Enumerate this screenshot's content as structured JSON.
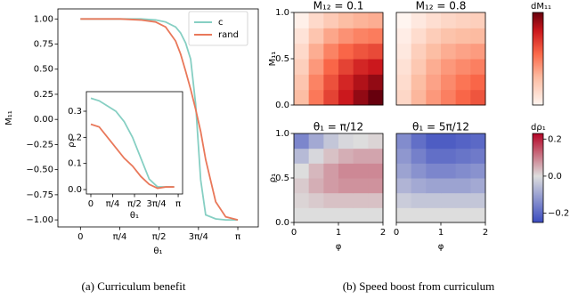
{
  "chart_data": [
    {
      "type": "line",
      "caption": "(a) Curriculum benefit",
      "xlabel": "θ₁",
      "ylabel": "M₁₁",
      "x": [
        0,
        0.4,
        0.8,
        1.2,
        1.5,
        1.7,
        1.9,
        2.0,
        2.1,
        2.2,
        2.3,
        2.4,
        2.5,
        2.7,
        2.9,
        3.1416
      ],
      "series": [
        {
          "name": "c",
          "color": "#86cfc3",
          "values": [
            1,
            1,
            1,
            1,
            0.99,
            0.97,
            0.92,
            0.86,
            0.76,
            0.6,
            0.15,
            -0.6,
            -0.95,
            -0.99,
            -1,
            -1
          ]
        },
        {
          "name": "rand",
          "color": "#e9785a",
          "values": [
            1,
            1,
            1,
            0.99,
            0.97,
            0.92,
            0.78,
            0.65,
            0.48,
            0.3,
            0.1,
            -0.12,
            -0.4,
            -0.82,
            -0.97,
            -1
          ]
        }
      ],
      "xlim": [
        -0.45,
        3.55
      ],
      "ylim": [
        -1.07,
        1.1
      ],
      "xticks": [
        0,
        {
          "value": 0.7854,
          "label": "π/4"
        },
        {
          "value": 1.5708,
          "label": "π/2"
        },
        {
          "value": 2.3562,
          "label": "3π/4"
        },
        {
          "value": 3.1416,
          "label": "π"
        }
      ],
      "yticks": [
        {
          "value": -1,
          "label": "−1.00"
        },
        {
          "value": -0.75,
          "label": "−0.75"
        },
        {
          "value": -0.5,
          "label": "−0.50"
        },
        {
          "value": -0.25,
          "label": "−0.25"
        },
        {
          "value": 0,
          "label": "0.00"
        },
        {
          "value": 0.25,
          "label": "0.25"
        },
        {
          "value": 0.5,
          "label": "0.50"
        },
        {
          "value": 0.75,
          "label": "0.75"
        },
        {
          "value": 1,
          "label": "1.00"
        }
      ],
      "legend": "upper right"
    },
    {
      "type": "line",
      "xlabel": "θ₁",
      "ylabel": "ρ₁",
      "x": [
        0,
        0.3,
        0.6,
        0.9,
        1.2,
        1.5,
        1.8,
        2.1,
        2.4,
        2.7,
        3.0
      ],
      "series": [
        {
          "name": "c",
          "color": "#86cfc3",
          "values": [
            0.35,
            0.34,
            0.32,
            0.3,
            0.26,
            0.2,
            0.12,
            0.04,
            0.01,
            0.01,
            0.01
          ]
        },
        {
          "name": "rand",
          "color": "#e9785a",
          "values": [
            0.25,
            0.24,
            0.2,
            0.16,
            0.12,
            0.09,
            0.05,
            0.02,
            0.005,
            0.01,
            0.01
          ]
        }
      ],
      "xlim": [
        -0.16,
        3.3
      ],
      "ylim": [
        -0.017,
        0.375
      ],
      "xticks": [
        0,
        {
          "value": 0.7854,
          "label": "π/4"
        },
        {
          "value": 1.5708,
          "label": "π/2"
        },
        {
          "value": 2.3562,
          "label": "3π/4"
        },
        {
          "value": 3.1416,
          "label": "π"
        }
      ],
      "yticks": [
        {
          "value": 0,
          "label": "0.0"
        },
        {
          "value": 0.1,
          "label": "0.1"
        },
        {
          "value": 0.2,
          "label": "0.2"
        },
        {
          "value": 0.3,
          "label": "0.3"
        }
      ]
    },
    {
      "type": "heatmap",
      "caption": "(b) Speed boost from curriculum",
      "title": "M₁₂ = 0.1",
      "ylabel": "M₁₁",
      "cmap": "reds",
      "xlim": [
        0,
        2
      ],
      "ylim": [
        0,
        1
      ],
      "yticks": [
        {
          "value": 0,
          "label": "0.0"
        },
        {
          "value": 0.5,
          "label": "0.5"
        },
        {
          "value": 1,
          "label": "1.0"
        }
      ],
      "z": [
        [
          0.25,
          0.45,
          0.6,
          0.72,
          0.85,
          0.95
        ],
        [
          0.22,
          0.42,
          0.56,
          0.68,
          0.78,
          0.85
        ],
        [
          0.18,
          0.36,
          0.5,
          0.6,
          0.68,
          0.72
        ],
        [
          0.14,
          0.3,
          0.42,
          0.5,
          0.55,
          0.58
        ],
        [
          0.1,
          0.22,
          0.32,
          0.38,
          0.42,
          0.44
        ],
        [
          0.05,
          0.14,
          0.2,
          0.25,
          0.28,
          0.3
        ]
      ]
    },
    {
      "type": "heatmap",
      "title": "M₁₂ = 0.8",
      "cmap": "reds",
      "xlim": [
        0,
        2
      ],
      "ylim": [
        0,
        1
      ],
      "z": [
        [
          0.15,
          0.27,
          0.36,
          0.43,
          0.5,
          0.55
        ],
        [
          0.13,
          0.25,
          0.33,
          0.4,
          0.46,
          0.5
        ],
        [
          0.11,
          0.21,
          0.3,
          0.36,
          0.4,
          0.43
        ],
        [
          0.08,
          0.18,
          0.25,
          0.3,
          0.33,
          0.35
        ],
        [
          0.06,
          0.13,
          0.19,
          0.23,
          0.25,
          0.26
        ],
        [
          0.03,
          0.08,
          0.12,
          0.15,
          0.17,
          0.18
        ]
      ]
    },
    {
      "type": "heatmap",
      "title": "θ₁ = π/12",
      "xlabel": "φ",
      "ylabel": "ρ₁",
      "cmap": "coolwarm",
      "xlim": [
        0,
        2
      ],
      "ylim": [
        0,
        1
      ],
      "xticks": [
        0,
        1,
        2
      ],
      "yticks": [
        {
          "value": 0,
          "label": "0.0"
        },
        {
          "value": 0.5,
          "label": "0.5"
        },
        {
          "value": 1,
          "label": "1.0"
        }
      ],
      "z": [
        [
          0,
          0,
          0,
          0,
          0,
          0
        ],
        [
          0.01,
          0.02,
          0.03,
          0.03,
          0.03,
          0.03
        ],
        [
          0.02,
          0.05,
          0.07,
          0.08,
          0.08,
          0.08
        ],
        [
          0,
          0.04,
          0.07,
          0.09,
          0.09,
          0.09
        ],
        [
          -0.06,
          -0.01,
          0.03,
          0.05,
          0.06,
          0.06
        ],
        [
          -0.15,
          -0.09,
          -0.04,
          -0.01,
          0,
          0.01
        ]
      ]
    },
    {
      "type": "heatmap",
      "title": "θ₁ = 5π/12",
      "xlabel": "φ",
      "cmap": "coolwarm",
      "xlim": [
        0,
        2
      ],
      "ylim": [
        0,
        1
      ],
      "xticks": [
        0,
        1,
        2
      ],
      "z": [
        [
          0,
          0,
          0,
          0,
          0,
          0
        ],
        [
          -0.03,
          -0.04,
          -0.04,
          -0.04,
          -0.04,
          -0.04
        ],
        [
          -0.07,
          -0.09,
          -0.1,
          -0.1,
          -0.1,
          -0.09
        ],
        [
          -0.1,
          -0.13,
          -0.15,
          -0.15,
          -0.14,
          -0.13
        ],
        [
          -0.12,
          -0.16,
          -0.19,
          -0.19,
          -0.18,
          -0.17
        ],
        [
          -0.14,
          -0.19,
          -0.22,
          -0.22,
          -0.21,
          -0.2
        ]
      ]
    },
    {
      "type": "colorbar",
      "label": "dM₁₁",
      "cmap": "reds"
    },
    {
      "type": "colorbar",
      "label": "dρ₁",
      "cmap": "coolwarm",
      "clim": [
        -0.25,
        0.23
      ],
      "ticks": [
        {
          "value": -0.2,
          "label": "−0.2"
        },
        {
          "value": 0,
          "label": "0.0"
        },
        0.2
      ]
    }
  ]
}
